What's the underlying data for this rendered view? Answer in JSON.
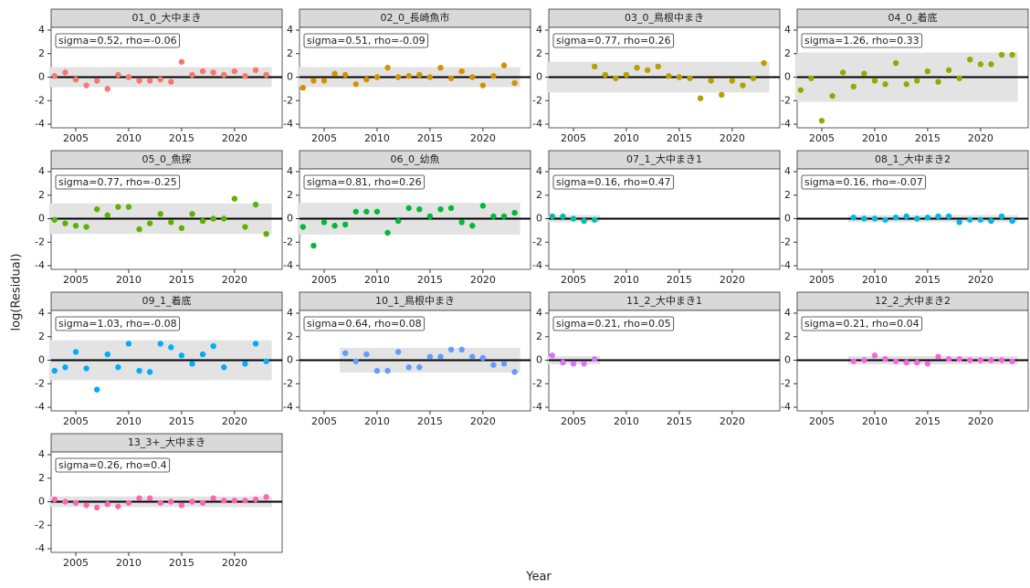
{
  "x_label": "Year",
  "y_label": "log(Residual)",
  "chart_data": [
    {
      "type": "scatter",
      "title": "01_0_大中まき",
      "annotation": "sigma=0.52, rho=-0.06",
      "color": "#F8766D",
      "x": [
        2003,
        2004,
        2005,
        2006,
        2007,
        2008,
        2009,
        2010,
        2011,
        2012,
        2013,
        2014,
        2015,
        2016,
        2017,
        2018,
        2019,
        2020,
        2021,
        2022,
        2023
      ],
      "values": [
        0.1,
        0.4,
        -0.2,
        -0.7,
        -0.3,
        -1.0,
        0.2,
        0.0,
        -0.3,
        -0.3,
        -0.2,
        -0.4,
        1.3,
        0.2,
        0.5,
        0.4,
        0.2,
        0.5,
        0.1,
        0.6,
        0.2
      ],
      "band": [
        -0.85,
        0.85
      ],
      "hline": 0,
      "xlim": [
        2002.67,
        2024.5
      ],
      "ylim": [
        -4,
        4
      ],
      "xticks": [
        2005,
        2010,
        2015,
        2020
      ],
      "yticks": [
        -4,
        -2,
        0,
        2,
        4
      ]
    },
    {
      "type": "scatter",
      "title": "02_0_長崎魚市",
      "annotation": "sigma=0.51, rho=-0.09",
      "color": "#D39200",
      "x": [
        2003,
        2004,
        2005,
        2006,
        2007,
        2008,
        2009,
        2010,
        2011,
        2012,
        2013,
        2014,
        2015,
        2016,
        2017,
        2018,
        2019,
        2020,
        2021,
        2022,
        2023
      ],
      "values": [
        -0.9,
        -0.3,
        -0.3,
        0.3,
        0.2,
        -0.6,
        -0.2,
        0.0,
        0.8,
        0.0,
        0.1,
        0.2,
        0.0,
        0.8,
        -0.1,
        0.5,
        0.0,
        -0.7,
        0.1,
        1.0,
        -0.5
      ],
      "band": [
        -0.85,
        0.85
      ],
      "hline": 0,
      "xlim": [
        2002.67,
        2024.5
      ],
      "ylim": [
        -4,
        4
      ],
      "xticks": [
        2005,
        2010,
        2015,
        2020
      ],
      "yticks": [
        -4,
        -2,
        0,
        2,
        4
      ]
    },
    {
      "type": "scatter",
      "title": "03_0_鳥根中まき",
      "annotation": "sigma=0.77, rho=0.26",
      "color": "#B79F00",
      "x": [
        2003,
        2004,
        2005,
        2006,
        2007,
        2008,
        2009,
        2010,
        2011,
        2012,
        2013,
        2014,
        2015,
        2016,
        2017,
        2018,
        2019,
        2020,
        2021,
        2022,
        2023
      ],
      "values": [
        null,
        null,
        null,
        null,
        0.9,
        0.2,
        -0.1,
        0.2,
        0.8,
        0.6,
        0.9,
        0.1,
        0.0,
        -0.1,
        -1.8,
        -0.3,
        -1.5,
        -0.3,
        -0.7,
        -0.1,
        1.2
      ],
      "band": [
        -1.3,
        1.3
      ],
      "hline": 0,
      "xlim": [
        2002.67,
        2024.5
      ],
      "ylim": [
        -4,
        4
      ],
      "xticks": [
        2005,
        2010,
        2015,
        2020
      ],
      "yticks": [
        -4,
        -2,
        0,
        2,
        4
      ]
    },
    {
      "type": "scatter",
      "title": "04_0_着底",
      "annotation": "sigma=1.26, rho=0.33",
      "color": "#93AA00",
      "x": [
        2003,
        2004,
        2005,
        2006,
        2007,
        2008,
        2009,
        2010,
        2011,
        2012,
        2013,
        2014,
        2015,
        2016,
        2017,
        2018,
        2019,
        2020,
        2021,
        2022,
        2023
      ],
      "values": [
        -1.1,
        -0.1,
        -3.7,
        -1.6,
        0.4,
        -0.8,
        0.3,
        -0.3,
        -0.6,
        1.2,
        -0.6,
        -0.3,
        0.5,
        -0.4,
        0.6,
        -0.1,
        1.5,
        1.1,
        1.1,
        1.9,
        1.9
      ],
      "band": [
        -2.1,
        2.1
      ],
      "hline": 0,
      "xlim": [
        2002.67,
        2024.5
      ],
      "ylim": [
        -4,
        4
      ],
      "xticks": [
        2005,
        2010,
        2015,
        2020
      ],
      "yticks": [
        -4,
        -2,
        0,
        2,
        4
      ]
    },
    {
      "type": "scatter",
      "title": "05_0_魚探",
      "annotation": "sigma=0.77, rho=-0.25",
      "color": "#5BB300",
      "x": [
        2003,
        2004,
        2005,
        2006,
        2007,
        2008,
        2009,
        2010,
        2011,
        2012,
        2013,
        2014,
        2015,
        2016,
        2017,
        2018,
        2019,
        2020,
        2021,
        2022,
        2023
      ],
      "values": [
        -0.1,
        -0.4,
        -0.6,
        -0.7,
        0.8,
        0.3,
        1.0,
        1.0,
        -0.9,
        -0.4,
        0.4,
        -0.3,
        -0.8,
        0.4,
        -0.2,
        0.0,
        0.0,
        1.7,
        -0.7,
        1.2,
        -1.3
      ],
      "band": [
        -1.3,
        1.3
      ],
      "hline": 0,
      "xlim": [
        2002.67,
        2024.5
      ],
      "ylim": [
        -4,
        4
      ],
      "xticks": [
        2005,
        2010,
        2015,
        2020
      ],
      "yticks": [
        -4,
        -2,
        0,
        2,
        4
      ]
    },
    {
      "type": "scatter",
      "title": "06_0_幼魚",
      "annotation": "sigma=0.81, rho=0.26",
      "color": "#00BA38",
      "x": [
        2003,
        2004,
        2005,
        2006,
        2007,
        2008,
        2009,
        2010,
        2011,
        2012,
        2013,
        2014,
        2015,
        2016,
        2017,
        2018,
        2019,
        2020,
        2021,
        2022,
        2023
      ],
      "values": [
        -0.7,
        -2.3,
        -0.3,
        -0.6,
        -0.5,
        0.6,
        0.6,
        0.6,
        -1.2,
        -0.2,
        0.9,
        0.8,
        0.2,
        0.8,
        0.9,
        -0.3,
        -0.6,
        1.1,
        0.2,
        0.2,
        0.5
      ],
      "band": [
        -1.35,
        1.35
      ],
      "hline": 0,
      "xlim": [
        2002.67,
        2024.5
      ],
      "ylim": [
        -4,
        4
      ],
      "xticks": [
        2005,
        2010,
        2015,
        2020
      ],
      "yticks": [
        -4,
        -2,
        0,
        2,
        4
      ]
    },
    {
      "type": "scatter",
      "title": "07_1_大中まき1",
      "annotation": "sigma=0.16, rho=0.47",
      "color": "#00C19F",
      "x": [
        2003,
        2004,
        2005,
        2006,
        2007
      ],
      "values": [
        0.2,
        0.2,
        0.0,
        -0.2,
        -0.1
      ],
      "band": [
        -0.3,
        0.3
      ],
      "hline": 0,
      "xlim": [
        2002.67,
        2024.5
      ],
      "ylim": [
        -4,
        4
      ],
      "xticks": [
        2005,
        2010,
        2015,
        2020
      ],
      "yticks": [
        -4,
        -2,
        0,
        2,
        4
      ]
    },
    {
      "type": "scatter",
      "title": "08_1_大中まき2",
      "annotation": "sigma=0.16, rho=-0.07",
      "color": "#00B9E3",
      "x": [
        2008,
        2009,
        2010,
        2011,
        2012,
        2013,
        2014,
        2015,
        2016,
        2017,
        2018,
        2019,
        2020,
        2021,
        2022,
        2023
      ],
      "values": [
        0.1,
        0.0,
        0.0,
        -0.1,
        0.1,
        0.2,
        0.0,
        0.1,
        0.2,
        0.2,
        -0.3,
        -0.1,
        -0.1,
        -0.2,
        0.2,
        -0.2
      ],
      "band": [
        -0.3,
        0.3
      ],
      "hline": 0,
      "xlim": [
        2002.67,
        2024.5
      ],
      "ylim": [
        -4,
        4
      ],
      "xticks": [
        2005,
        2010,
        2015,
        2020
      ],
      "yticks": [
        -4,
        -2,
        0,
        2,
        4
      ]
    },
    {
      "type": "scatter",
      "title": "09_1_着底",
      "annotation": "sigma=1.03, rho=-0.08",
      "color": "#00ADFA",
      "x": [
        2003,
        2004,
        2005,
        2006,
        2007,
        2008,
        2009,
        2010,
        2011,
        2012,
        2013,
        2014,
        2015,
        2016,
        2017,
        2018,
        2019,
        2021,
        2022,
        2023
      ],
      "values": [
        -0.9,
        -0.6,
        0.7,
        -0.7,
        -2.5,
        0.5,
        -0.6,
        1.4,
        -0.9,
        -1.0,
        1.4,
        1.1,
        0.4,
        -0.3,
        0.5,
        1.2,
        -0.6,
        -0.3,
        1.4,
        -0.1
      ],
      "band": [
        -1.7,
        1.7
      ],
      "hline": 0,
      "xlim": [
        2002.67,
        2024.5
      ],
      "ylim": [
        -4,
        4
      ],
      "xticks": [
        2005,
        2010,
        2015,
        2020
      ],
      "yticks": [
        -4,
        -2,
        0,
        2,
        4
      ]
    },
    {
      "type": "scatter",
      "title": "10_1_鳥根中まき",
      "annotation": "sigma=0.64, rho=0.08",
      "color": "#619CFF",
      "x": [
        2007,
        2008,
        2009,
        2010,
        2011,
        2012,
        2013,
        2014,
        2015,
        2016,
        2017,
        2018,
        2019,
        2020,
        2021,
        2022,
        2023
      ],
      "values": [
        0.6,
        -0.1,
        0.5,
        -0.9,
        -0.9,
        0.7,
        -0.6,
        -0.6,
        0.3,
        0.3,
        0.9,
        0.9,
        0.3,
        0.2,
        -0.4,
        -0.3,
        -1.0
      ],
      "band": [
        -1.05,
        1.05
      ],
      "hline": 0,
      "xlim": [
        2002.67,
        2024.5
      ],
      "ylim": [
        -4,
        4
      ],
      "xticks": [
        2005,
        2010,
        2015,
        2020
      ],
      "yticks": [
        -4,
        -2,
        0,
        2,
        4
      ]
    },
    {
      "type": "scatter",
      "title": "11_2_大中まき1",
      "annotation": "sigma=0.21, rho=0.05",
      "color": "#DB72FB",
      "x": [
        2003,
        2004,
        2005,
        2006,
        2007
      ],
      "values": [
        0.4,
        -0.2,
        -0.3,
        -0.3,
        0.1
      ],
      "band": [
        -0.35,
        0.35
      ],
      "hline": 0,
      "xlim": [
        2002.67,
        2024.5
      ],
      "ylim": [
        -4,
        4
      ],
      "xticks": [
        2005,
        2010,
        2015,
        2020
      ],
      "yticks": [
        -4,
        -2,
        0,
        2,
        4
      ]
    },
    {
      "type": "scatter",
      "title": "12_2_大中まき2",
      "annotation": "sigma=0.21, rho=0.04",
      "color": "#F564E3",
      "x": [
        2008,
        2009,
        2010,
        2011,
        2012,
        2013,
        2014,
        2015,
        2016,
        2017,
        2018,
        2019,
        2020,
        2021,
        2022,
        2023
      ],
      "values": [
        -0.1,
        0.0,
        0.4,
        0.1,
        -0.1,
        -0.2,
        -0.2,
        -0.3,
        0.3,
        0.1,
        0.1,
        0.0,
        0.0,
        0.0,
        0.0,
        -0.1
      ],
      "band": [
        -0.35,
        0.35
      ],
      "hline": 0,
      "xlim": [
        2002.67,
        2024.5
      ],
      "ylim": [
        -4,
        4
      ],
      "xticks": [
        2005,
        2010,
        2015,
        2020
      ],
      "yticks": [
        -4,
        -2,
        0,
        2,
        4
      ]
    },
    {
      "type": "scatter",
      "title": "13_3+_大中まき",
      "annotation": "sigma=0.26, rho=0.4",
      "color": "#FF64B0",
      "x": [
        2003,
        2004,
        2005,
        2006,
        2007,
        2008,
        2009,
        2010,
        2011,
        2012,
        2013,
        2014,
        2015,
        2016,
        2017,
        2018,
        2019,
        2020,
        2021,
        2022,
        2023
      ],
      "values": [
        0.2,
        0.0,
        -0.1,
        -0.3,
        -0.5,
        -0.2,
        -0.4,
        -0.1,
        0.3,
        0.3,
        -0.1,
        0.0,
        -0.3,
        0.0,
        -0.1,
        0.3,
        0.1,
        0.1,
        0.1,
        0.2,
        0.4
      ],
      "band": [
        -0.45,
        0.45
      ],
      "hline": 0,
      "xlim": [
        2002.67,
        2024.5
      ],
      "ylim": [
        -4,
        4
      ],
      "xticks": [
        2005,
        2010,
        2015,
        2020
      ],
      "yticks": [
        -4,
        -2,
        0,
        2,
        4
      ]
    }
  ]
}
